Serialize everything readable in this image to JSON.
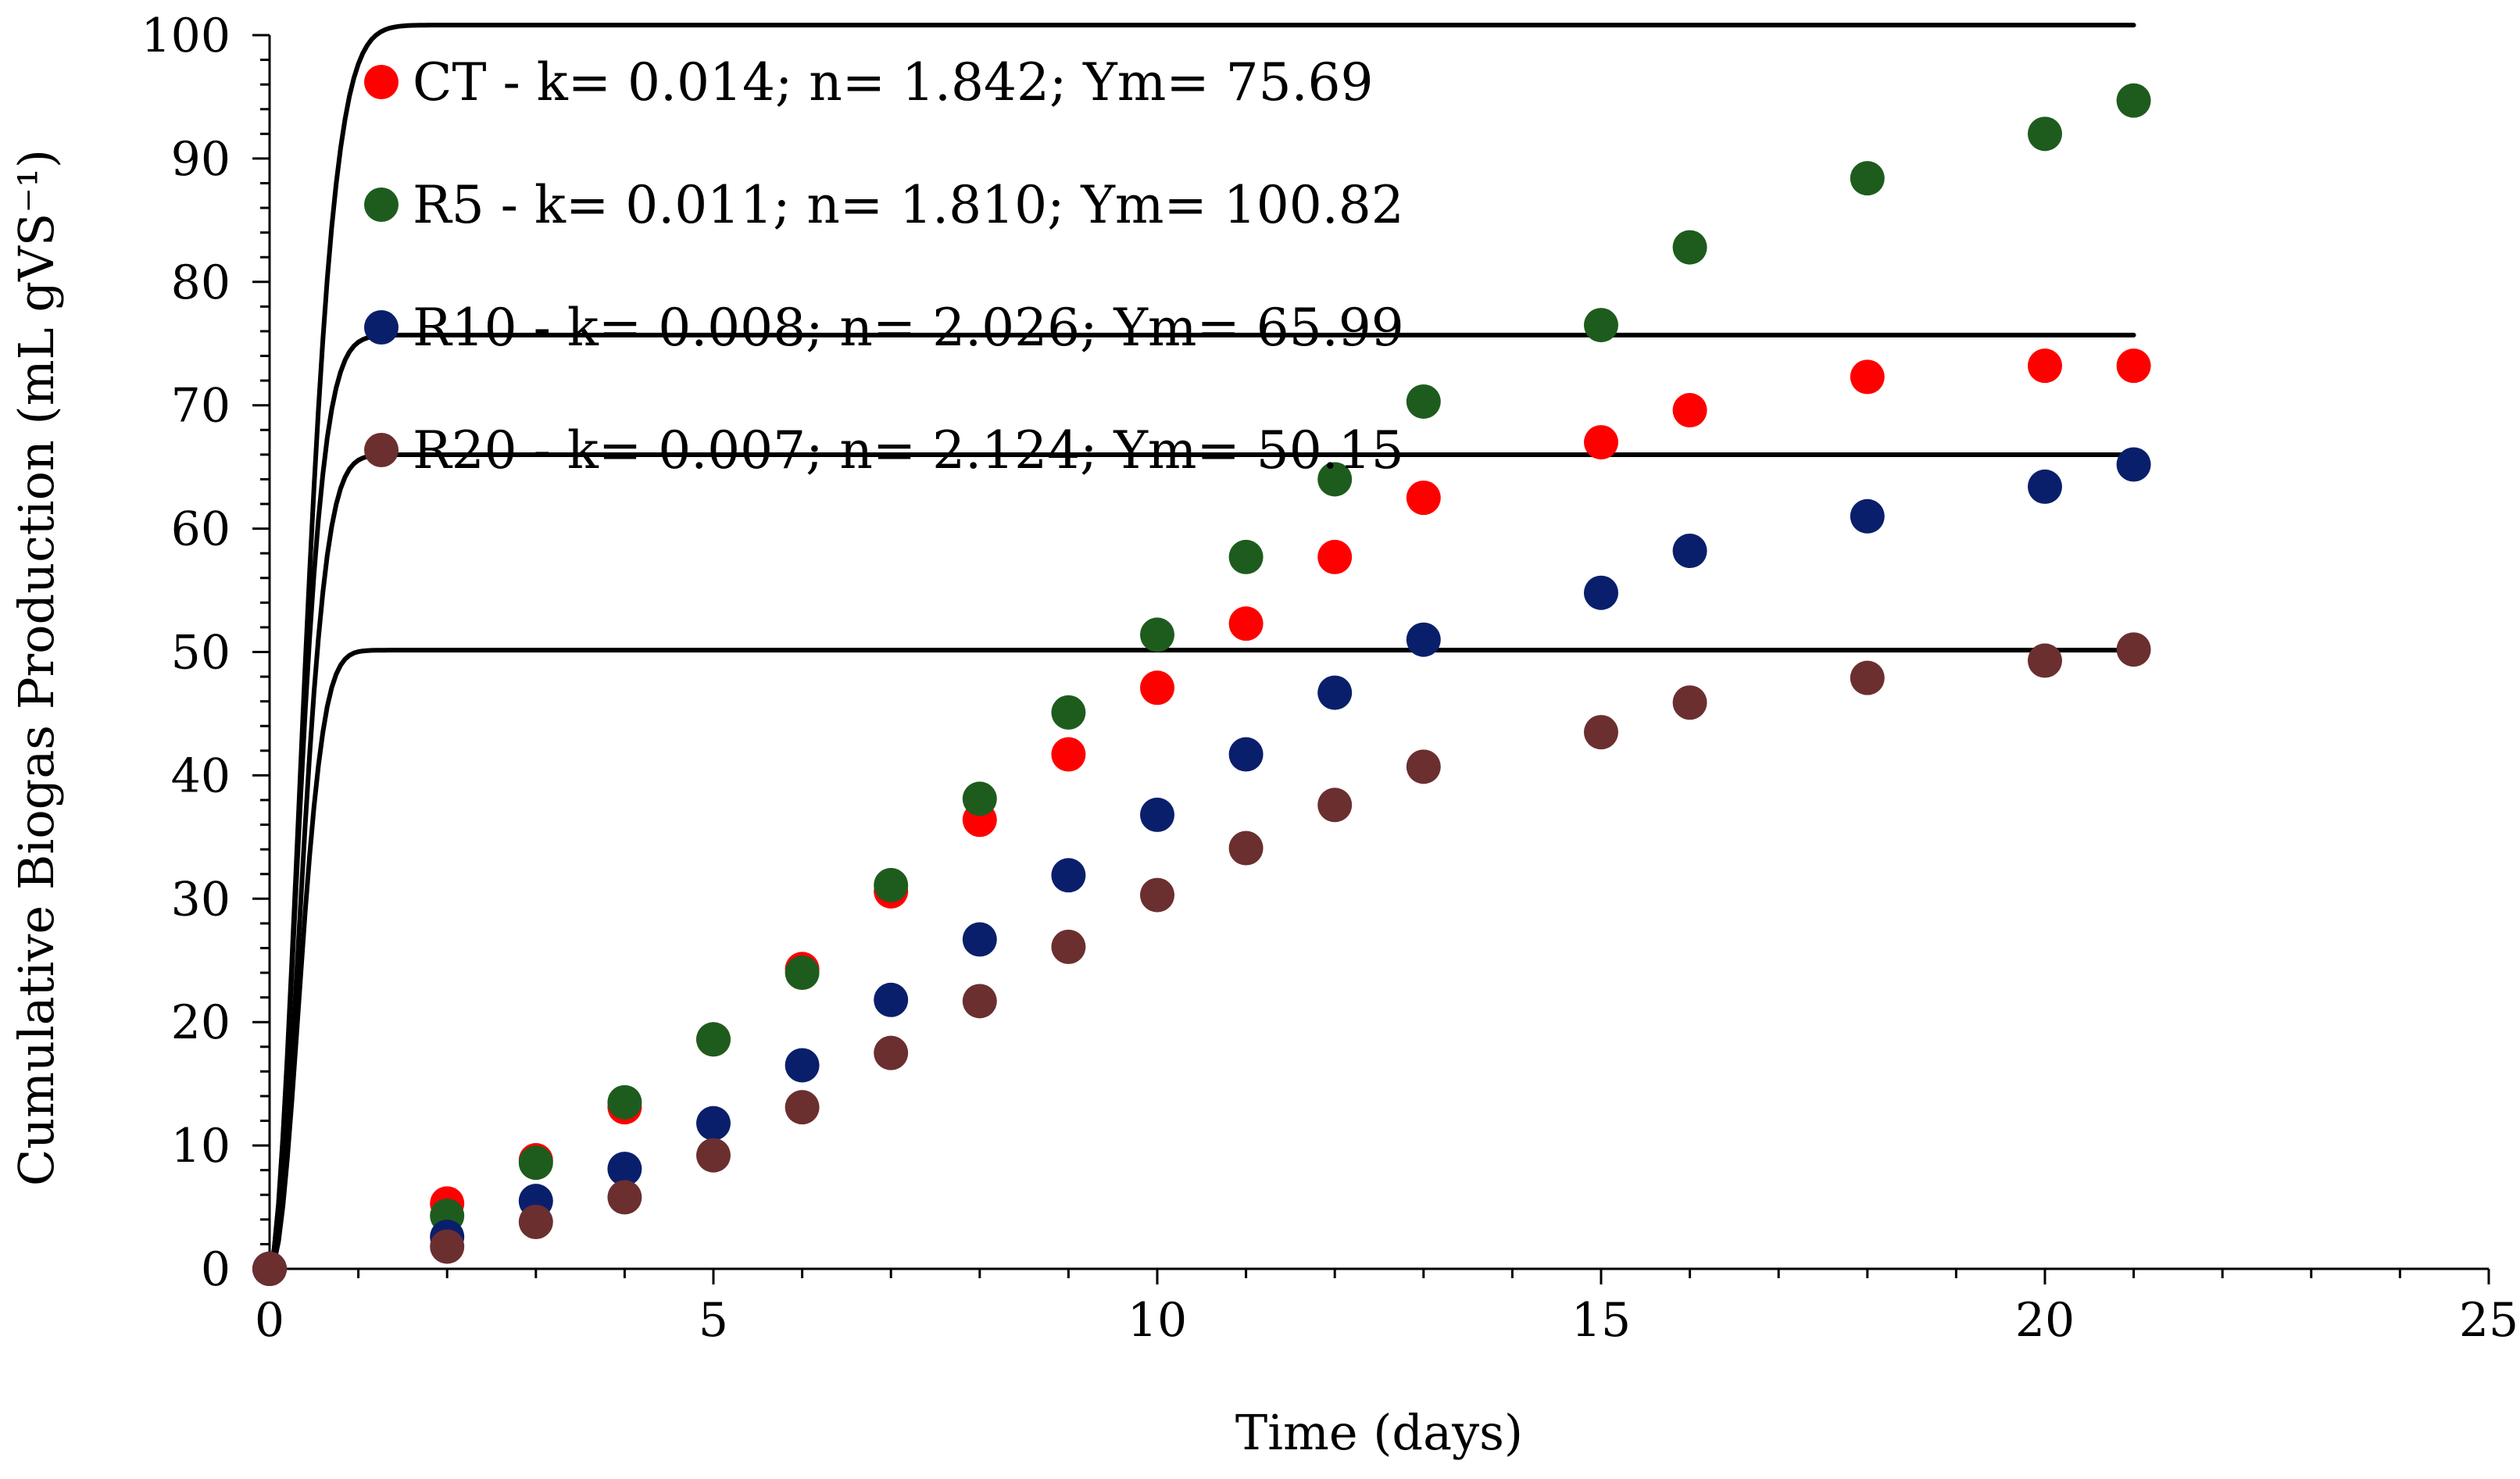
{
  "chart_data": {
    "type": "scatter",
    "title": "",
    "xlabel": "Time (days)",
    "ylabel": "Cumulative Biogas Production (mL gVS⁻¹)",
    "xlim": [
      0,
      25
    ],
    "ylim": [
      0,
      100
    ],
    "x_ticks": [
      0,
      5,
      10,
      15,
      20,
      25
    ],
    "y_ticks": [
      0,
      10,
      20,
      30,
      40,
      50,
      60,
      70,
      80,
      90,
      100
    ],
    "x_tick_labels": [
      "0",
      "5",
      "10",
      "15",
      "20",
      "25"
    ],
    "y_tick_labels": [
      "0",
      "10",
      "20",
      "30",
      "40",
      "50",
      "60",
      "70",
      "80",
      "90",
      "100"
    ],
    "x_minor_step": 1,
    "y_minor_step": 2,
    "legend_position": "top-left",
    "grid": false,
    "fit_model": "Ym*(1-exp(-k*(24*t)^n))",
    "series": [
      {
        "name": "CT",
        "legend_label": "CT - k= 0.014; n= 1.842; Ym= 75.69",
        "color": "#ff0000",
        "k": 0.014,
        "n": 1.842,
        "ym": 75.69,
        "x": [
          0,
          2,
          3,
          4,
          5,
          6,
          7,
          8,
          9,
          10,
          11,
          12,
          13,
          15,
          16,
          18,
          20,
          21
        ],
        "y": [
          0,
          5.3,
          8.8,
          13.1,
          18.6,
          24.3,
          30.6,
          36.4,
          41.7,
          47.1,
          52.3,
          57.7,
          62.5,
          67.0,
          69.6,
          72.3,
          73.2,
          73.2
        ]
      },
      {
        "name": "R5",
        "legend_label": "R5 - k= 0.011; n= 1.810; Ym= 100.82",
        "color": "#1e5c1e",
        "k": 0.011,
        "n": 1.81,
        "ym": 100.82,
        "x": [
          0,
          2,
          3,
          4,
          5,
          6,
          7,
          8,
          9,
          10,
          11,
          12,
          13,
          15,
          16,
          18,
          20,
          21
        ],
        "y": [
          0,
          4.3,
          8.6,
          13.5,
          18.6,
          24.0,
          31.1,
          38.1,
          45.1,
          51.4,
          57.7,
          64.0,
          70.3,
          76.5,
          82.8,
          88.4,
          92.0,
          94.7
        ]
      },
      {
        "name": "R10",
        "legend_label": "R10 - k= 0.008; n= 2.026; Ym= 65.99",
        "color": "#0a1f6b",
        "k": 0.008,
        "n": 2.026,
        "ym": 65.99,
        "x": [
          0,
          2,
          3,
          4,
          5,
          6,
          7,
          8,
          9,
          10,
          11,
          12,
          13,
          15,
          16,
          18,
          20,
          21
        ],
        "y": [
          0,
          2.6,
          5.5,
          8.1,
          11.8,
          16.5,
          21.8,
          26.7,
          31.9,
          36.8,
          41.7,
          46.7,
          51.0,
          54.8,
          58.2,
          61.0,
          63.4,
          65.2
        ]
      },
      {
        "name": "R20",
        "legend_label": "R20 - k= 0.007; n= 2.124; Ym= 50.15",
        "color": "#6b2f2f",
        "k": 0.007,
        "n": 2.124,
        "ym": 50.15,
        "x": [
          0,
          2,
          3,
          4,
          5,
          6,
          7,
          8,
          9,
          10,
          11,
          12,
          13,
          15,
          16,
          18,
          20,
          21
        ],
        "y": [
          0,
          1.8,
          3.8,
          5.8,
          9.2,
          13.1,
          17.5,
          21.7,
          26.1,
          30.3,
          34.1,
          37.6,
          40.7,
          43.5,
          45.9,
          47.9,
          49.3,
          50.2
        ]
      }
    ]
  }
}
